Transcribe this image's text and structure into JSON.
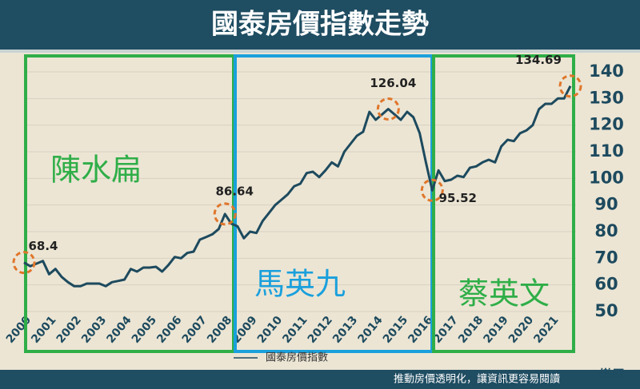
{
  "chart_data": {
    "type": "line",
    "title": "國泰房價指數走勢",
    "categories": [
      "2000",
      null,
      null,
      null,
      "2001",
      null,
      null,
      null,
      "2002",
      null,
      null,
      null,
      "2003",
      null,
      null,
      null,
      "2004",
      null,
      null,
      null,
      "2005",
      null,
      null,
      null,
      "2006",
      null,
      null,
      null,
      "2007",
      null,
      null,
      null,
      "2008",
      null,
      null,
      null,
      "2009",
      null,
      null,
      null,
      "2010",
      null,
      null,
      null,
      "2011",
      null,
      null,
      null,
      "2012",
      null,
      null,
      null,
      "2013",
      null,
      null,
      null,
      "2014",
      null,
      null,
      null,
      "2015",
      null,
      null,
      null,
      "2016",
      null,
      null,
      null,
      "2017",
      null,
      null,
      null,
      "2018",
      null,
      null,
      null,
      "2019",
      null,
      null,
      null,
      "2020",
      null,
      null,
      null,
      "2021",
      null,
      null,
      null
    ],
    "series": [
      {
        "name": "國泰房價指數",
        "color": "#1d4a5e",
        "values": [
          68.4,
          67,
          68,
          69,
          64,
          66,
          63,
          61,
          59.5,
          59.5,
          60.5,
          60.5,
          60.5,
          59.5,
          61,
          61.5,
          62,
          66,
          65,
          66.5,
          66.5,
          66.8,
          65,
          67.5,
          70.5,
          70,
          72,
          72.5,
          77,
          78,
          79,
          81,
          86.64,
          83,
          82,
          77.5,
          80,
          79.5,
          84,
          87,
          90,
          92,
          94,
          97,
          98,
          102,
          102.5,
          100.5,
          103,
          106,
          104.5,
          110,
          113,
          116,
          117.5,
          125,
          122,
          124,
          126.04,
          124,
          122,
          125,
          123,
          117,
          106,
          95.52,
          103,
          99,
          99.5,
          101,
          100.5,
          104,
          104.5,
          106,
          107,
          106,
          112,
          114.5,
          114,
          117,
          118,
          120,
          126,
          128,
          128,
          130,
          130,
          134.69
        ],
        "value_labels": [
          "68.4",
          null,
          null,
          null,
          null,
          null,
          null,
          null,
          null,
          null,
          null,
          null,
          null,
          null,
          null,
          null,
          null,
          null,
          null,
          null,
          null,
          null,
          null,
          null,
          null,
          null,
          null,
          null,
          null,
          null,
          null,
          null,
          "86.64",
          null,
          null,
          null,
          null,
          null,
          null,
          null,
          null,
          null,
          null,
          null,
          null,
          null,
          null,
          null,
          null,
          null,
          null,
          null,
          null,
          null,
          null,
          null,
          null,
          null,
          "126.04",
          null,
          null,
          null,
          null,
          null,
          null,
          "95.52",
          null,
          null,
          null,
          null,
          null,
          null,
          null,
          null,
          null,
          null,
          null,
          null,
          null,
          null,
          null,
          null,
          null,
          null,
          null,
          null,
          null,
          "134.69"
        ]
      }
    ],
    "ylim": [
      50,
      140
    ],
    "yticks": [
      50,
      60,
      70,
      80,
      90,
      100,
      110,
      120,
      130,
      140
    ],
    "grid": true,
    "regions": [
      {
        "label": "陳水扁",
        "color": "#2fae48"
      },
      {
        "label": "馬英九",
        "color": "#1aa0dc"
      },
      {
        "label": "蔡英文",
        "color": "#2fae48"
      }
    ]
  },
  "footer": {
    "slogan": "推動房價透明化，讓資訊更容易閱讀",
    "brand": "樂居"
  }
}
